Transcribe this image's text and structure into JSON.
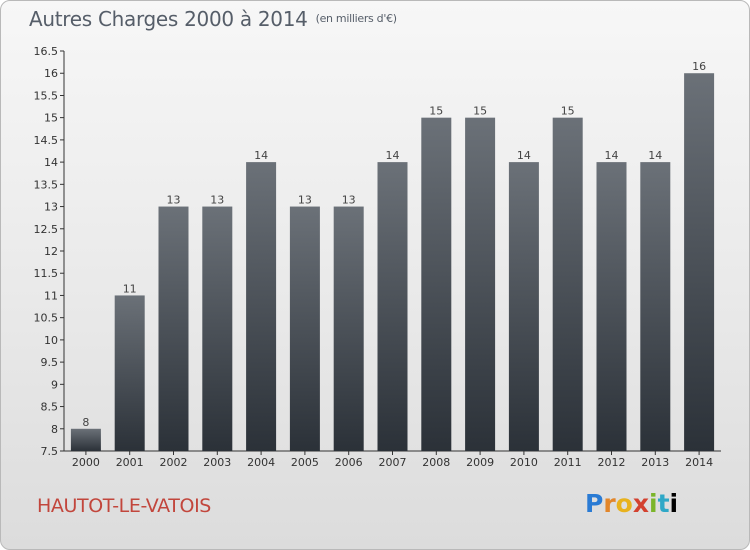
{
  "header": {
    "title": "Autres Charges 2000 à 2014",
    "subtitle": "(en milliers d'€)"
  },
  "footer": {
    "town": "HAUTOT-LE-VATOIS",
    "logo_letters": [
      "P",
      "r",
      "o",
      "x",
      "i",
      "t",
      "i"
    ]
  },
  "colors": {
    "bar_top": "#6b7178",
    "bar_bottom": "#2b3138",
    "title": "#565e69",
    "town": "#c2463c"
  },
  "chart_data": {
    "type": "bar",
    "title": "Autres Charges 2000 à 2014",
    "subtitle": "(en milliers d'€)",
    "xlabel": "",
    "ylabel": "",
    "categories": [
      "2000",
      "2001",
      "2002",
      "2003",
      "2004",
      "2005",
      "2006",
      "2007",
      "2008",
      "2009",
      "2010",
      "2011",
      "2012",
      "2013",
      "2014"
    ],
    "values": [
      8,
      11,
      13,
      13,
      14,
      13,
      13,
      14,
      15,
      15,
      14,
      15,
      14,
      14,
      16
    ],
    "ylim": [
      7.5,
      16.5
    ],
    "yticks": [
      "7.5",
      "8",
      "8.5",
      "9",
      "9.5",
      "10",
      "10.5",
      "11",
      "11.5",
      "12",
      "12.5",
      "13",
      "13.5",
      "14",
      "14.5",
      "15",
      "15.5",
      "16",
      "16.5"
    ],
    "grid": false,
    "legend": "none"
  }
}
